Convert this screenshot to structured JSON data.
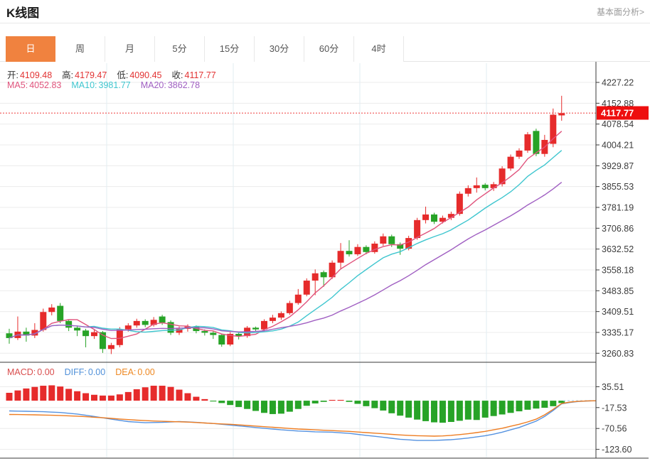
{
  "header": {
    "title": "K线图",
    "link": "基本面分析>"
  },
  "tabs": {
    "items": [
      {
        "label": "日",
        "active": true
      },
      {
        "label": "周",
        "active": false
      },
      {
        "label": "月",
        "active": false
      },
      {
        "label": "5分",
        "active": false
      },
      {
        "label": "15分",
        "active": false
      },
      {
        "label": "30分",
        "active": false
      },
      {
        "label": "60分",
        "active": false
      },
      {
        "label": "4时",
        "active": false
      }
    ]
  },
  "overlay": {
    "ohlc": [
      {
        "label": "开:",
        "value": "4109.48"
      },
      {
        "label": "高:",
        "value": "4179.47"
      },
      {
        "label": "低:",
        "value": "4090.45"
      },
      {
        "label": "收:",
        "value": "4117.77"
      }
    ],
    "ohlc_value_color": "#e23333",
    "ma": [
      {
        "label": "MA5:",
        "value": "4052.83",
        "color": "#e0537c"
      },
      {
        "label": "MA10:",
        "value": "3981.77",
        "color": "#3fc6cf"
      },
      {
        "label": "MA20:",
        "value": "3862.78",
        "color": "#a05fc2"
      }
    ],
    "macd": [
      {
        "label": "MACD:",
        "value": "0.00",
        "color": "#d94d4d"
      },
      {
        "label": "DIFF:",
        "value": "0.00",
        "color": "#4f90d9"
      },
      {
        "label": "DEA:",
        "value": "0.00",
        "color": "#ee8822"
      }
    ]
  },
  "price_axis": {
    "ticks": [
      "4227.22",
      "4152.88",
      "4078.54",
      "4004.21",
      "3929.87",
      "3855.53",
      "3781.19",
      "3706.86",
      "3632.52",
      "3558.18",
      "3483.85",
      "3409.51",
      "3335.17",
      "3260.83"
    ],
    "badge": "4117.77"
  },
  "macd_axis": {
    "ticks": [
      "35.51",
      "-17.53",
      "-70.56",
      "-123.60"
    ]
  },
  "colors": {
    "up": "#e62b2b",
    "down": "#27a327",
    "ma5": "#e0537c",
    "ma10": "#3fc6cf",
    "ma20": "#a05fc2",
    "diff": "#5592e0",
    "dea": "#ee7d22",
    "badge": "#ee0f0f",
    "price_line": "#f05050",
    "grid": "#ececec",
    "vgrid": "#e2ecf2",
    "axis": "#3a3a3a",
    "zero_dash": "#b9d7ea",
    "tick_text": "#3c3c3c"
  },
  "chart_data": {
    "type": "candlestick+macd",
    "title": "K线图 (daily)",
    "price_axis_range": [
      3260.83,
      4227.22
    ],
    "macd_axis_range": [
      -123.6,
      35.51
    ],
    "current_price_line": 4117.77,
    "last_bar": {
      "open": 4109.48,
      "high": 4179.47,
      "low": 4090.45,
      "close": 4117.77
    },
    "ma_values": {
      "MA5": 4052.83,
      "MA10": 3981.77,
      "MA20": 3862.78
    },
    "macd_values": {
      "MACD": 0.0,
      "DIFF": 0.0,
      "DEA": 0.0
    },
    "candles_ohlc": [
      [
        3332,
        3348,
        3295,
        3315
      ],
      [
        3315,
        3392,
        3308,
        3338
      ],
      [
        3338,
        3352,
        3302,
        3324
      ],
      [
        3324,
        3368,
        3315,
        3344
      ],
      [
        3344,
        3420,
        3338,
        3408
      ],
      [
        3408,
        3436,
        3396,
        3424
      ],
      [
        3430,
        3440,
        3368,
        3376
      ],
      [
        3376,
        3382,
        3340,
        3352
      ],
      [
        3352,
        3358,
        3322,
        3342
      ],
      [
        3342,
        3348,
        3282,
        3322
      ],
      [
        3322,
        3344,
        3312,
        3336
      ],
      [
        3336,
        3340,
        3262,
        3276
      ],
      [
        3276,
        3298,
        3258,
        3290
      ],
      [
        3290,
        3354,
        3282,
        3346
      ],
      [
        3346,
        3368,
        3338,
        3360
      ],
      [
        3360,
        3384,
        3352,
        3376
      ],
      [
        3376,
        3382,
        3354,
        3362
      ],
      [
        3362,
        3390,
        3356,
        3380
      ],
      [
        3392,
        3398,
        3362,
        3370
      ],
      [
        3372,
        3378,
        3326,
        3334
      ],
      [
        3334,
        3356,
        3326,
        3348
      ],
      [
        3348,
        3364,
        3338,
        3356
      ],
      [
        3356,
        3360,
        3332,
        3340
      ],
      [
        3340,
        3346,
        3324,
        3334
      ],
      [
        3334,
        3340,
        3312,
        3326
      ],
      [
        3326,
        3330,
        3284,
        3292
      ],
      [
        3292,
        3336,
        3286,
        3330
      ],
      [
        3330,
        3334,
        3310,
        3322
      ],
      [
        3322,
        3358,
        3316,
        3352
      ],
      [
        3352,
        3356,
        3338,
        3346
      ],
      [
        3346,
        3382,
        3340,
        3376
      ],
      [
        3376,
        3398,
        3368,
        3388
      ],
      [
        3388,
        3410,
        3380,
        3404
      ],
      [
        3404,
        3448,
        3398,
        3440
      ],
      [
        3440,
        3490,
        3434,
        3470
      ],
      [
        3470,
        3528,
        3464,
        3520
      ],
      [
        3520,
        3560,
        3468,
        3546
      ],
      [
        3550,
        3556,
        3498,
        3532
      ],
      [
        3532,
        3592,
        3526,
        3584
      ],
      [
        3584,
        3654,
        3564,
        3626
      ],
      [
        3626,
        3664,
        3606,
        3614
      ],
      [
        3614,
        3650,
        3608,
        3640
      ],
      [
        3640,
        3646,
        3614,
        3622
      ],
      [
        3622,
        3660,
        3616,
        3652
      ],
      [
        3652,
        3688,
        3644,
        3678
      ],
      [
        3678,
        3684,
        3640,
        3650
      ],
      [
        3650,
        3656,
        3612,
        3634
      ],
      [
        3634,
        3680,
        3628,
        3672
      ],
      [
        3672,
        3744,
        3666,
        3736
      ],
      [
        3736,
        3784,
        3724,
        3756
      ],
      [
        3756,
        3762,
        3722,
        3730
      ],
      [
        3730,
        3752,
        3724,
        3744
      ],
      [
        3744,
        3766,
        3736,
        3758
      ],
      [
        3758,
        3838,
        3752,
        3830
      ],
      [
        3830,
        3860,
        3820,
        3850
      ],
      [
        3850,
        3888,
        3834,
        3860
      ],
      [
        3862,
        3868,
        3842,
        3850
      ],
      [
        3850,
        3872,
        3840,
        3864
      ],
      [
        3864,
        3928,
        3856,
        3920
      ],
      [
        3920,
        3970,
        3912,
        3962
      ],
      [
        3962,
        3992,
        3954,
        3984
      ],
      [
        3984,
        4050,
        3976,
        4042
      ],
      [
        4054,
        4062,
        3964,
        3972
      ],
      [
        3972,
        4040,
        3962,
        4022
      ],
      [
        4008,
        4134,
        3996,
        4112
      ],
      [
        4109.48,
        4179.47,
        4090.45,
        4117.77
      ]
    ],
    "ma_windows": [
      5,
      10,
      20
    ],
    "macd_bars": [
      20,
      26,
      31,
      35,
      38,
      39,
      36,
      30,
      24,
      19,
      15,
      13,
      13,
      16,
      22,
      29,
      34,
      38,
      38,
      35,
      28,
      19,
      10,
      4,
      -2,
      -6,
      -11,
      -16,
      -21,
      -26,
      -31,
      -34,
      -33,
      -28,
      -21,
      -13,
      -7,
      -3,
      2,
      2,
      -3,
      -8,
      -14,
      -19,
      -25,
      -32,
      -38,
      -43,
      -48,
      -52,
      -55,
      -56,
      -54,
      -51,
      -48,
      -49,
      -43,
      -39,
      -35,
      -31,
      -27,
      -23,
      -20,
      -18,
      -14,
      -6
    ],
    "diff": [
      -26,
      -26.5,
      -27,
      -27.5,
      -28,
      -29,
      -30,
      -32,
      -34,
      -37,
      -40,
      -43.5,
      -47,
      -50,
      -53,
      -54.5,
      -56,
      -55.5,
      -55,
      -54,
      -53,
      -54,
      -55,
      -56.5,
      -58,
      -60,
      -62,
      -64,
      -66,
      -68,
      -70,
      -72,
      -74,
      -75.5,
      -77,
      -78,
      -79,
      -79.5,
      -80,
      -81.5,
      -83,
      -85.5,
      -88,
      -90.5,
      -93,
      -95.5,
      -98,
      -99.5,
      -101,
      -101,
      -101,
      -100,
      -99,
      -97,
      -95,
      -92,
      -89,
      -85,
      -80,
      -74,
      -68,
      -60,
      -52,
      -40,
      -25,
      -8
    ],
    "diff_tail": [
      -4.5,
      -2,
      -0.8,
      -0.3
    ],
    "dea": [
      -35,
      -35.3,
      -35.6,
      -36,
      -36.4,
      -37,
      -37.6,
      -38.4,
      -39.4,
      -40.6,
      -42,
      -43.4,
      -45,
      -46.6,
      -48,
      -49.4,
      -50.6,
      -51.6,
      -52.4,
      -53,
      -53.6,
      -54.4,
      -55.4,
      -56.6,
      -58,
      -59,
      -60,
      -61.4,
      -63,
      -64.4,
      -66,
      -67.5,
      -69,
      -70.5,
      -72,
      -73,
      -74,
      -75,
      -76,
      -77,
      -78,
      -79.5,
      -81,
      -82.5,
      -84,
      -85.5,
      -87,
      -88,
      -89,
      -89.6,
      -90,
      -89.5,
      -88,
      -86,
      -84,
      -81,
      -78,
      -74,
      -70,
      -65,
      -60,
      -54,
      -47,
      -36,
      -22,
      -7
    ],
    "dea_tail": [
      -3.5,
      -1.5,
      -0.6,
      -0.2
    ]
  }
}
